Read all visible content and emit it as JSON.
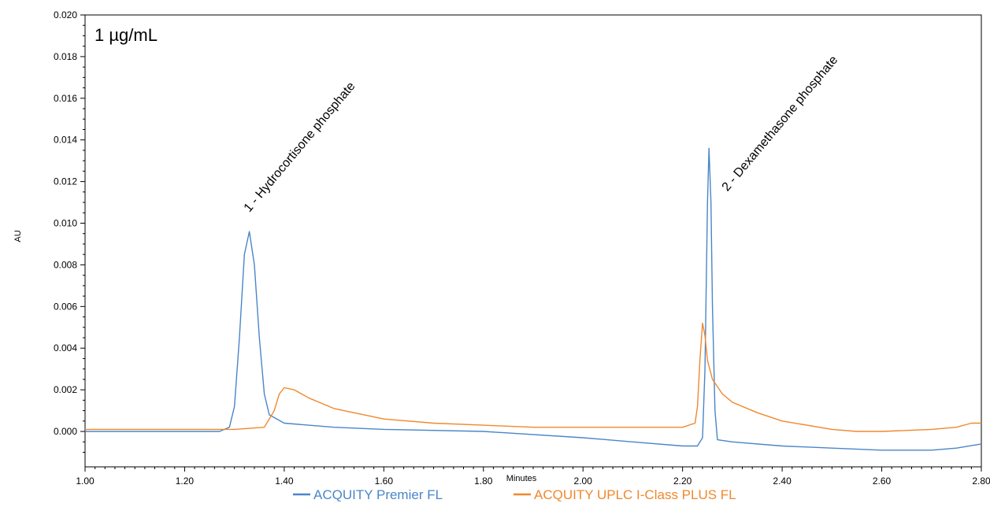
{
  "chart_data": {
    "type": "line",
    "concentration_label": "1 µg/mL",
    "xlabel": "Minutes",
    "ylabel": "AU",
    "xlim": [
      1.0,
      2.8
    ],
    "ylim": [
      -0.0017,
      0.02
    ],
    "x_ticks": [
      "1.00",
      "1.20",
      "1.40",
      "1.60",
      "1.80",
      "2.00",
      "2.20",
      "2.40",
      "2.60",
      "2.80"
    ],
    "y_ticks": [
      "0.000",
      "0.002",
      "0.004",
      "0.006",
      "0.008",
      "0.010",
      "0.012",
      "0.014",
      "0.016",
      "0.018",
      "0.020"
    ],
    "grid": false,
    "legend_position": "bottom",
    "peak_annotations": [
      {
        "label": "1 - Hydrocortisone phosphate",
        "x": 1.33,
        "y": 0.0105
      },
      {
        "label": "2 - Dexamethasone phosphate",
        "x": 2.29,
        "y": 0.0115
      }
    ],
    "series": [
      {
        "name": "ACQUITY Premier FL",
        "color": "#4a86c8",
        "points": [
          [
            1.0,
            0.0
          ],
          [
            1.1,
            0.0
          ],
          [
            1.2,
            0.0
          ],
          [
            1.27,
            0.0
          ],
          [
            1.29,
            0.0002
          ],
          [
            1.3,
            0.0012
          ],
          [
            1.31,
            0.0045
          ],
          [
            1.32,
            0.0085
          ],
          [
            1.33,
            0.0096
          ],
          [
            1.34,
            0.008
          ],
          [
            1.35,
            0.0045
          ],
          [
            1.36,
            0.0018
          ],
          [
            1.37,
            0.0008
          ],
          [
            1.4,
            0.0004
          ],
          [
            1.5,
            0.0002
          ],
          [
            1.6,
            0.0001
          ],
          [
            1.8,
            0.0
          ],
          [
            2.0,
            -0.0003
          ],
          [
            2.1,
            -0.0005
          ],
          [
            2.2,
            -0.0007
          ],
          [
            2.23,
            -0.0007
          ],
          [
            2.24,
            -0.0003
          ],
          [
            2.245,
            0.003
          ],
          [
            2.25,
            0.011
          ],
          [
            2.253,
            0.0136
          ],
          [
            2.257,
            0.011
          ],
          [
            2.26,
            0.006
          ],
          [
            2.265,
            0.001
          ],
          [
            2.27,
            -0.0004
          ],
          [
            2.3,
            -0.0005
          ],
          [
            2.4,
            -0.0007
          ],
          [
            2.5,
            -0.0008
          ],
          [
            2.6,
            -0.0009
          ],
          [
            2.7,
            -0.0009
          ],
          [
            2.75,
            -0.0008
          ],
          [
            2.8,
            -0.0006
          ]
        ]
      },
      {
        "name": "ACQUITY UPLC I-Class PLUS FL",
        "color": "#f0882c",
        "points": [
          [
            1.0,
            0.0001
          ],
          [
            1.1,
            0.0001
          ],
          [
            1.2,
            0.0001
          ],
          [
            1.3,
            0.0001
          ],
          [
            1.36,
            0.0002
          ],
          [
            1.38,
            0.001
          ],
          [
            1.39,
            0.0018
          ],
          [
            1.4,
            0.0021
          ],
          [
            1.42,
            0.002
          ],
          [
            1.45,
            0.0016
          ],
          [
            1.5,
            0.0011
          ],
          [
            1.6,
            0.0006
          ],
          [
            1.7,
            0.0004
          ],
          [
            1.8,
            0.0003
          ],
          [
            1.9,
            0.0002
          ],
          [
            2.0,
            0.0002
          ],
          [
            2.1,
            0.0002
          ],
          [
            2.2,
            0.0002
          ],
          [
            2.225,
            0.0004
          ],
          [
            2.23,
            0.0012
          ],
          [
            2.235,
            0.0035
          ],
          [
            2.24,
            0.0052
          ],
          [
            2.245,
            0.0046
          ],
          [
            2.25,
            0.0034
          ],
          [
            2.26,
            0.0025
          ],
          [
            2.28,
            0.0018
          ],
          [
            2.3,
            0.0014
          ],
          [
            2.35,
            0.0009
          ],
          [
            2.4,
            0.0005
          ],
          [
            2.5,
            0.0001
          ],
          [
            2.55,
            0.0
          ],
          [
            2.6,
            0.0
          ],
          [
            2.7,
            0.0001
          ],
          [
            2.75,
            0.0002
          ],
          [
            2.78,
            0.0004
          ],
          [
            2.8,
            0.0004
          ]
        ]
      }
    ]
  }
}
